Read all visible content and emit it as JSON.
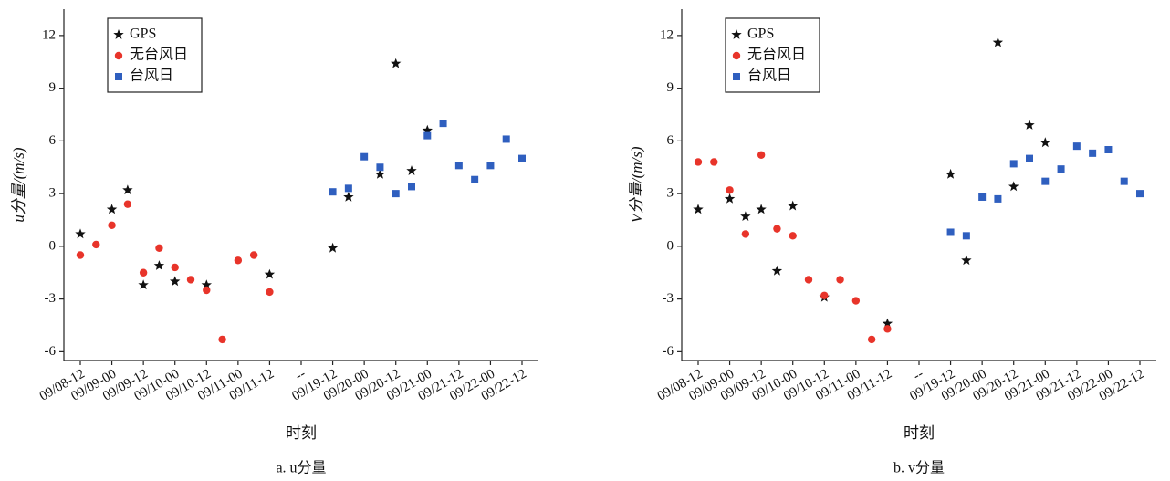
{
  "chart_data": [
    {
      "type": "scatter",
      "caption": "a.  u分量",
      "xlabel": "时刻",
      "ylabel": "u分量/(m/s)",
      "categories": [
        "09/08-12",
        null,
        "09/09-00",
        null,
        "09/09-12",
        null,
        "09/10-00",
        null,
        "09/10-12",
        null,
        "09/11-00",
        null,
        "09/11-12",
        null,
        "--",
        null,
        "09/19-12",
        null,
        "09/20-00",
        null,
        "09/20-12",
        null,
        "09/21-00",
        null,
        "09/21-12",
        null,
        "09/22-00",
        null,
        "09/22-12"
      ],
      "ylim": [
        -6.5,
        13.5
      ],
      "yticks": [
        -6,
        -3,
        0,
        3,
        6,
        9,
        12
      ],
      "legend": "upper left",
      "series": [
        {
          "name": "GPS",
          "color": "#111111",
          "marker": "star",
          "values": [
            0.7,
            null,
            2.1,
            3.2,
            -2.2,
            -1.1,
            -2.0,
            null,
            -2.2,
            null,
            null,
            null,
            -1.6,
            null,
            null,
            null,
            -0.1,
            2.8,
            null,
            4.1,
            10.4,
            4.3,
            6.6,
            null,
            null,
            null,
            null,
            null,
            null
          ]
        },
        {
          "name": "无台风日",
          "color": "#e8342a",
          "marker": "circle",
          "values": [
            -0.5,
            0.1,
            1.2,
            2.4,
            -1.5,
            -0.1,
            -1.2,
            -1.9,
            -2.5,
            -5.3,
            -0.8,
            -0.5,
            -2.6,
            null,
            null,
            null,
            null,
            null,
            null,
            null,
            null,
            null,
            null,
            null,
            null,
            null,
            null,
            null,
            null
          ]
        },
        {
          "name": "台风日",
          "color": "#2f5fbf",
          "marker": "square",
          "values": [
            null,
            null,
            null,
            null,
            null,
            null,
            null,
            null,
            null,
            null,
            null,
            null,
            null,
            null,
            null,
            null,
            3.1,
            3.3,
            5.1,
            4.5,
            3.0,
            3.4,
            6.3,
            7.0,
            4.6,
            3.8,
            4.6,
            6.1,
            5.0
          ]
        }
      ]
    },
    {
      "type": "scatter",
      "caption": "b.  v分量",
      "xlabel": "时刻",
      "ylabel": "V分量/(m/s)",
      "categories": [
        "09/08-12",
        null,
        "09/09-00",
        null,
        "09/09-12",
        null,
        "09/10-00",
        null,
        "09/10-12",
        null,
        "09/11-00",
        null,
        "09/11-12",
        null,
        "--",
        null,
        "09/19-12",
        null,
        "09/20-00",
        null,
        "09/20-12",
        null,
        "09/21-00",
        null,
        "09/21-12",
        null,
        "09/22-00",
        null,
        "09/22-12"
      ],
      "ylim": [
        -6.5,
        13.5
      ],
      "yticks": [
        -6,
        -3,
        0,
        3,
        6,
        9,
        12
      ],
      "legend": "upper left",
      "series": [
        {
          "name": "GPS",
          "color": "#111111",
          "marker": "star",
          "values": [
            2.1,
            null,
            2.7,
            1.7,
            2.1,
            -1.4,
            2.3,
            null,
            -2.9,
            null,
            null,
            null,
            -4.4,
            null,
            null,
            null,
            4.1,
            -0.8,
            null,
            11.6,
            3.4,
            6.9,
            5.9,
            null,
            null,
            null,
            null,
            null,
            null
          ]
        },
        {
          "name": "无台风日",
          "color": "#e8342a",
          "marker": "circle",
          "values": [
            4.8,
            4.8,
            3.2,
            0.7,
            5.2,
            1.0,
            0.6,
            -1.9,
            -2.8,
            -1.9,
            -3.1,
            -5.3,
            -4.7,
            null,
            null,
            null,
            null,
            null,
            null,
            null,
            null,
            null,
            null,
            null,
            null,
            null,
            null,
            null,
            null
          ]
        },
        {
          "name": "台风日",
          "color": "#2f5fbf",
          "marker": "square",
          "values": [
            null,
            null,
            null,
            null,
            null,
            null,
            null,
            null,
            null,
            null,
            null,
            null,
            null,
            null,
            null,
            null,
            0.8,
            0.6,
            2.8,
            2.7,
            4.7,
            5.0,
            3.7,
            4.4,
            5.7,
            5.3,
            5.5,
            3.7,
            3.0
          ]
        }
      ]
    }
  ]
}
